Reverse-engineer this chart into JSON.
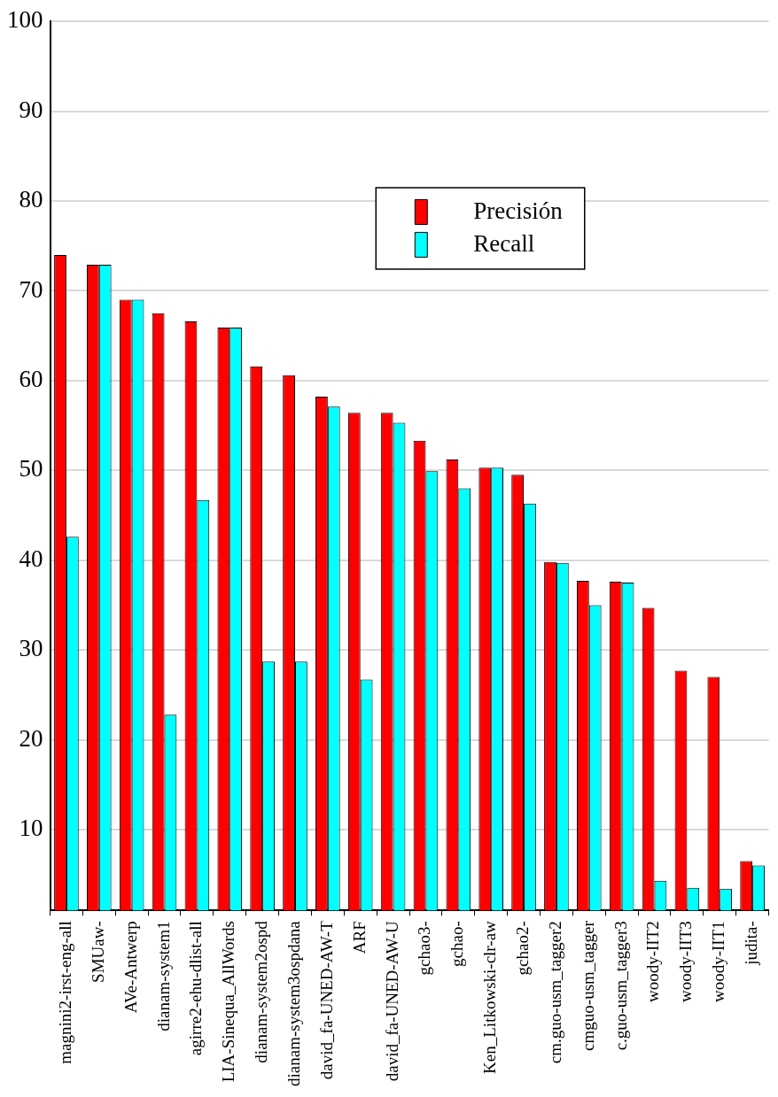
{
  "chart_data": {
    "type": "bar",
    "categories": [
      "magnini2-irst-eng-all",
      "SMUaw-",
      "AVe-Antwerp",
      "dianam-system1",
      "agirre2-ehu-dlist-all",
      "LIA-Sinequa_AllWords",
      "dianam-system2ospd",
      "dianam-system3ospdana",
      "david_fa-UNED-AW-T",
      "ARF",
      "david_fa-UNED-AW-U",
      "gchao3-",
      "gchao-",
      "Ken_Litkowski-clr-aw",
      "gchao2-",
      "cm.guo-usm_tagger2",
      "cmguo-usm_tagger",
      "c.guo-usm_tagger3",
      "woody-IIT2",
      "woody-IIT3",
      "woody-IIT1",
      "judita-"
    ],
    "series": [
      {
        "name": "Precisión",
        "color": "#ff0000",
        "values": [
          74.0,
          72.9,
          69.0,
          67.5,
          66.6,
          65.9,
          61.6,
          60.6,
          58.2,
          56.4,
          56.4,
          53.3,
          51.2,
          50.3,
          49.5,
          39.8,
          37.7,
          37.6,
          34.7,
          27.7,
          27.0,
          6.5
        ]
      },
      {
        "name": "Recall",
        "color": "#00ffff",
        "values": [
          42.6,
          72.9,
          69.0,
          22.8,
          46.7,
          65.9,
          28.7,
          28.7,
          57.1,
          26.7,
          55.3,
          49.9,
          48.0,
          50.3,
          46.3,
          39.7,
          35.0,
          37.5,
          4.3,
          3.5,
          3.4,
          6.0
        ]
      }
    ],
    "ylim": [
      1,
      100
    ],
    "yticks": [
      10,
      20,
      30,
      40,
      50,
      60,
      70,
      80,
      90,
      100
    ],
    "grid": "y",
    "legend": "top"
  }
}
